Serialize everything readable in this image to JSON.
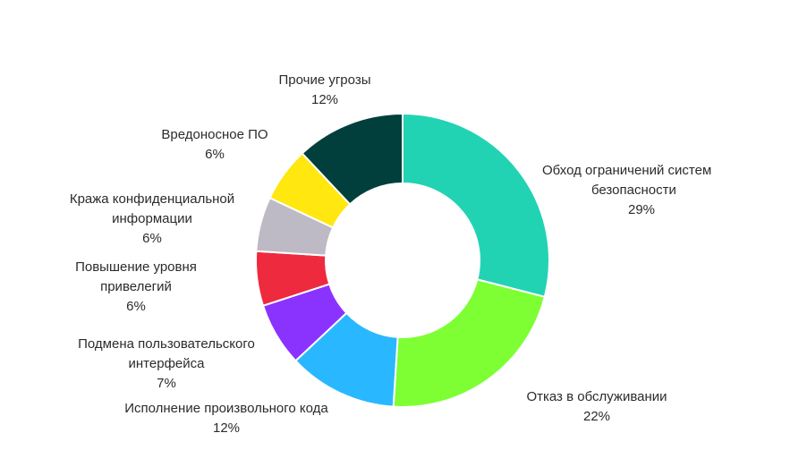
{
  "chart_data": {
    "type": "pie",
    "donut": true,
    "slices": [
      {
        "name": "Обход ограничений систем безопасности",
        "lines": [
          "Обход ограничений систем",
          "безопасности"
        ],
        "value": 29,
        "pct_label": "29%",
        "color": "#22d3b3"
      },
      {
        "name": "Отказ в обслуживании",
        "lines": [
          "Отказ в обслуживании"
        ],
        "value": 22,
        "pct_label": "22%",
        "color": "#7dff33"
      },
      {
        "name": "Исполнение произвольного кода",
        "lines": [
          "Исполнение произвольного кода"
        ],
        "value": 12,
        "pct_label": "12%",
        "color": "#29b8ff"
      },
      {
        "name": "Подмена пользовательского интерфейса",
        "lines": [
          "Подмена пользовательского",
          "интерфейса"
        ],
        "value": 7,
        "pct_label": "7%",
        "color": "#8a33ff"
      },
      {
        "name": "Повышение уровня привелегий",
        "lines": [
          "Повышение уровня",
          "привелегий"
        ],
        "value": 6,
        "pct_label": "6%",
        "color": "#ee2a3f"
      },
      {
        "name": "Кража конфиденциальной информации",
        "lines": [
          "Кража конфиденциальной",
          "информации"
        ],
        "value": 6,
        "pct_label": "6%",
        "color": "#bdbac6"
      },
      {
        "name": "Вредоносное ПО",
        "lines": [
          "Вредоносное ПО"
        ],
        "value": 6,
        "pct_label": "6%",
        "color": "#ffe70f"
      },
      {
        "name": "Прочие угрозы",
        "lines": [
          "Прочие угрозы"
        ],
        "value": 12,
        "pct_label": "12%",
        "color": "#003f3b"
      }
    ]
  }
}
